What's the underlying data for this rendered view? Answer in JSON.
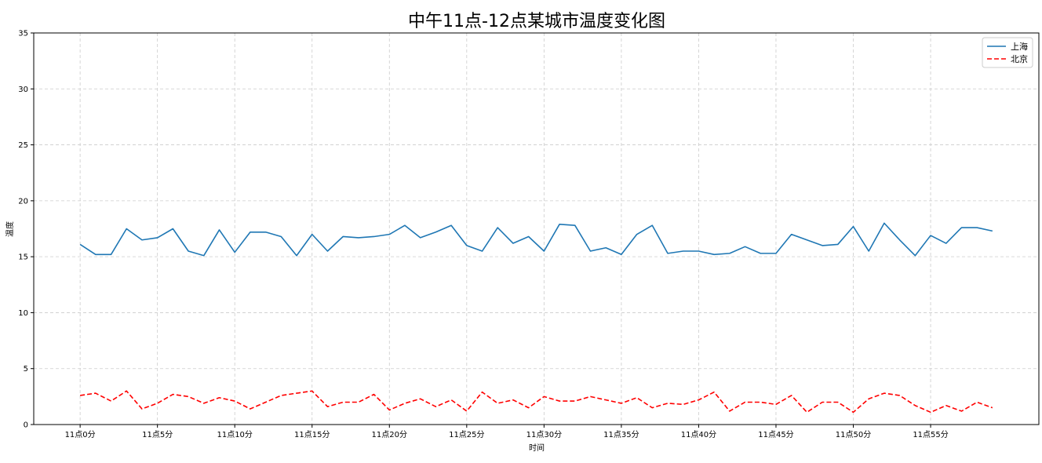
{
  "chart_data": {
    "type": "line",
    "title": "中午11点-12点某城市温度变化图",
    "xlabel": "时间",
    "ylabel": "温度",
    "x": [
      0,
      1,
      2,
      3,
      4,
      5,
      6,
      7,
      8,
      9,
      10,
      11,
      12,
      13,
      14,
      15,
      16,
      17,
      18,
      19,
      20,
      21,
      22,
      23,
      24,
      25,
      26,
      27,
      28,
      29,
      30,
      31,
      32,
      33,
      34,
      35,
      36,
      37,
      38,
      39,
      40,
      41,
      42,
      43,
      44,
      45,
      46,
      47,
      48,
      49,
      50,
      51,
      52,
      53,
      54,
      55,
      56,
      57,
      58,
      59
    ],
    "x_tick_values": [
      0,
      5,
      10,
      15,
      20,
      25,
      30,
      35,
      40,
      45,
      50,
      55
    ],
    "x_tick_labels": [
      "11点0分",
      "11点5分",
      "11点10分",
      "11点15分",
      "11点20分",
      "11点25分",
      "11点30分",
      "11点35分",
      "11点40分",
      "11点45分",
      "11点50分",
      "11点55分"
    ],
    "xlim": [
      -3,
      62
    ],
    "ylim": [
      0,
      35
    ],
    "y_ticks": [
      0,
      5,
      10,
      15,
      20,
      25,
      30,
      35
    ],
    "grid": true,
    "grid_color": "#cccccc",
    "legend_position": "top-right",
    "series": [
      {
        "name": "上海",
        "color": "#1f77b4",
        "linestyle": "solid",
        "values": [
          16.1,
          15.2,
          15.2,
          17.5,
          16.5,
          16.7,
          17.5,
          15.5,
          15.1,
          17.4,
          15.4,
          17.2,
          17.2,
          16.8,
          15.1,
          17.0,
          15.5,
          16.8,
          16.7,
          16.8,
          17.0,
          17.8,
          16.7,
          17.2,
          17.8,
          16.0,
          15.5,
          17.6,
          16.2,
          16.8,
          15.5,
          17.9,
          17.8,
          15.5,
          15.8,
          15.2,
          17.0,
          17.8,
          15.3,
          15.5,
          15.5,
          15.2,
          15.3,
          15.9,
          15.3,
          15.3,
          17.0,
          16.5,
          16.0,
          16.1,
          17.7,
          15.5,
          18.0,
          16.5,
          15.1,
          16.9,
          16.2,
          17.6,
          17.6,
          17.3
        ]
      },
      {
        "name": "北京",
        "color": "#ff0000",
        "linestyle": "dashed",
        "values": [
          2.6,
          2.8,
          2.1,
          3.0,
          1.4,
          1.9,
          2.7,
          2.5,
          1.9,
          2.4,
          2.1,
          1.4,
          2.0,
          2.6,
          2.8,
          3.0,
          1.6,
          2.0,
          2.0,
          2.7,
          1.3,
          1.9,
          2.3,
          1.6,
          2.2,
          1.2,
          2.9,
          1.9,
          2.2,
          1.5,
          2.5,
          2.1,
          2.1,
          2.5,
          2.2,
          1.9,
          2.4,
          1.5,
          1.9,
          1.8,
          2.2,
          2.9,
          1.2,
          2.0,
          2.0,
          1.8,
          2.6,
          1.1,
          2.0,
          2.0,
          1.1,
          2.3,
          2.8,
          2.6,
          1.7,
          1.1,
          1.7,
          1.2,
          2.0,
          1.5
        ]
      }
    ]
  }
}
